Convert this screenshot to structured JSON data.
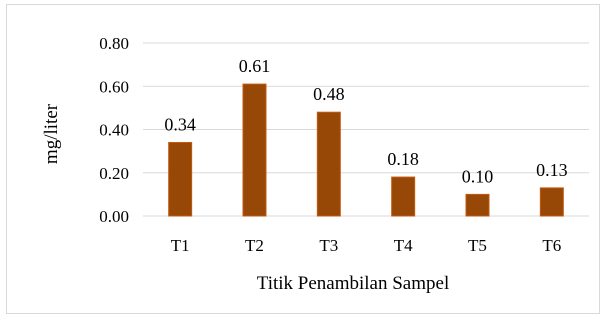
{
  "chart_data": {
    "type": "bar",
    "title": "",
    "xlabel": "Titik Penambilan Sampel",
    "ylabel": "mg/liter",
    "categories": [
      "T1",
      "T2",
      "T3",
      "T4",
      "T5",
      "T6"
    ],
    "values": [
      0.34,
      0.61,
      0.48,
      0.18,
      0.1,
      0.13
    ],
    "data_labels": [
      "0.34",
      "0.61",
      "0.48",
      "0.18",
      "0.10",
      "0.13"
    ],
    "ylim": [
      0,
      0.8
    ],
    "yticks": [
      "0.00",
      "0.20",
      "0.40",
      "0.60",
      "0.80"
    ],
    "grid": true,
    "legend": "none",
    "bar_color": "#974706",
    "bar_edge_color": "#c55a11"
  }
}
